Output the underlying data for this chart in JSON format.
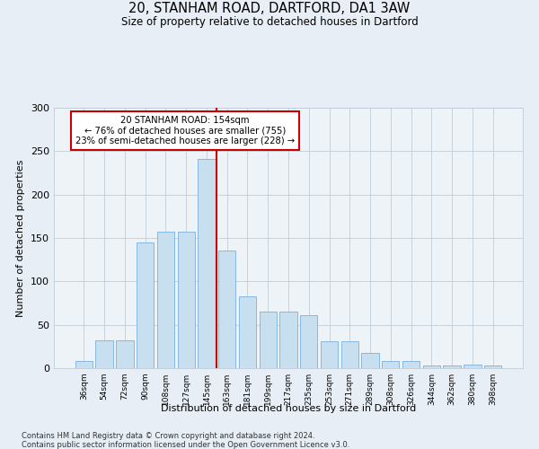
{
  "title1": "20, STANHAM ROAD, DARTFORD, DA1 3AW",
  "title2": "Size of property relative to detached houses in Dartford",
  "xlabel": "Distribution of detached houses by size in Dartford",
  "ylabel": "Number of detached properties",
  "footnote1": "Contains HM Land Registry data © Crown copyright and database right 2024.",
  "footnote2": "Contains public sector information licensed under the Open Government Licence v3.0.",
  "annotation_line1": "20 STANHAM ROAD: 154sqm",
  "annotation_line2": "← 76% of detached houses are smaller (755)",
  "annotation_line3": "23% of semi-detached houses are larger (228) →",
  "bar_color": "#c8dff0",
  "bar_edge_color": "#7aafe0",
  "vline_color": "#cc0000",
  "categories": [
    "36sqm",
    "54sqm",
    "72sqm",
    "90sqm",
    "108sqm",
    "127sqm",
    "145sqm",
    "163sqm",
    "181sqm",
    "199sqm",
    "217sqm",
    "235sqm",
    "253sqm",
    "271sqm",
    "289sqm",
    "308sqm",
    "326sqm",
    "344sqm",
    "362sqm",
    "380sqm",
    "398sqm"
  ],
  "values": [
    8,
    32,
    32,
    145,
    157,
    157,
    241,
    136,
    83,
    65,
    65,
    61,
    31,
    31,
    18,
    8,
    8,
    3,
    3,
    4,
    3
  ],
  "ylim": [
    0,
    300
  ],
  "yticks": [
    0,
    50,
    100,
    150,
    200,
    250,
    300
  ],
  "vline_position": 6.5,
  "bg_color": "#e8eef5",
  "plot_bg_color": "#eef3f8",
  "grid_color": "#c0cdd8"
}
